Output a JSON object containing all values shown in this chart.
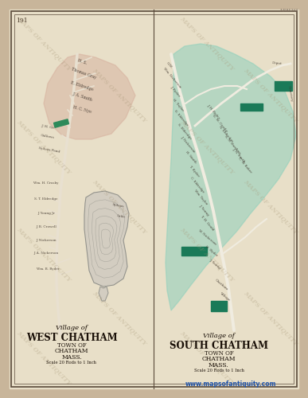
{
  "bg_outer": "#c8b59a",
  "bg_inner": "#e8dfc8",
  "border_color": "#5a4a3a",
  "page_num": "191",
  "watermark_text": "MAPS OF ANTIQUITY",
  "website": "www.mapsofantiquity.com",
  "corner_id": "M385365",
  "left_map": {
    "title_line1": "Village of",
    "title_line2": "WEST CHATHAM",
    "title_line3": "TOWN OF",
    "title_line4": "CHATHAM",
    "title_line5": "MASS.",
    "title_line6": "Scale 20 Rods to 1 Inch",
    "peach_zone_color": "#d4aa98",
    "green_block_color": "#2d8a5a",
    "lake_fill_color": "#d0cac0",
    "lake_outline_color": "#909088",
    "road_color": "#e8e0d0"
  },
  "right_map": {
    "title_line1": "Village of",
    "title_line2": "SOUTH CHATHAM",
    "title_line3": "TOWN OF",
    "title_line4": "CHATHAM",
    "title_line5": "MASS.",
    "title_line6": "Scale 20 Rods to 1 Inch",
    "green_zone_color": "#8dd0bc",
    "teal_block_color": "#1a7a58",
    "road_color": "#f0ece0"
  }
}
